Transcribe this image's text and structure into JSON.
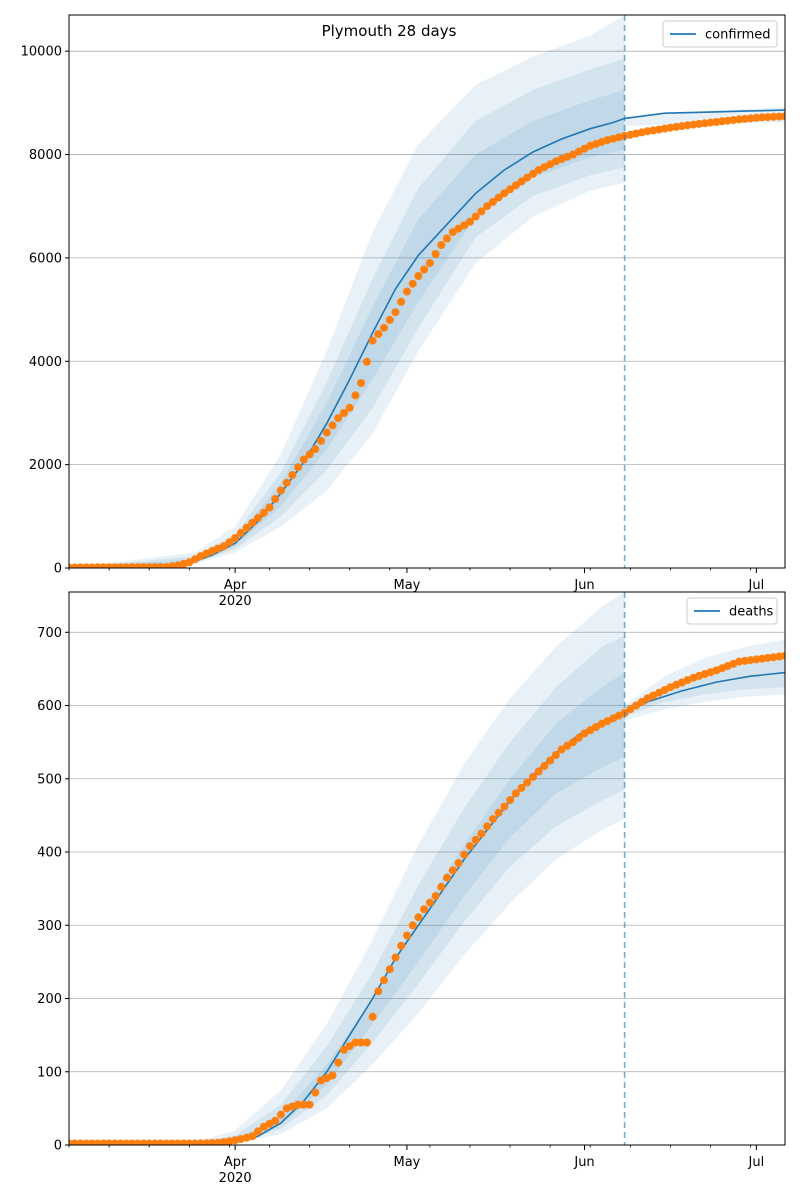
{
  "colors": {
    "model_line": "#1f77b4",
    "observed_points": "#ff7f0e",
    "band": "#1f77b4",
    "grid": "#b0b0b0"
  },
  "chart_data": [
    {
      "type": "line",
      "title": "Plymouth 28 days",
      "legend": {
        "entries": [
          "confirmed"
        ],
        "placement": "top-right"
      },
      "grid": {
        "y": true,
        "x": false
      },
      "x_axis": {
        "range": [
          "2020-03-03",
          "2020-07-06"
        ],
        "tick_labels": [
          {
            "date": "2020-04-01",
            "label": "Apr",
            "sublabel": "2020"
          },
          {
            "date": "2020-05-01",
            "label": "May",
            "sublabel": ""
          },
          {
            "date": "2020-06-01",
            "label": "Jun",
            "sublabel": ""
          },
          {
            "date": "2020-07-01",
            "label": "Jul",
            "sublabel": ""
          }
        ]
      },
      "y_axis": {
        "range": [
          0,
          10700
        ],
        "ticks": [
          0,
          2000,
          4000,
          6000,
          8000,
          10000
        ]
      },
      "forecast_start": "2020-06-08",
      "model_line": {
        "name": "confirmed",
        "dates": [
          "2020-03-03",
          "2020-03-20",
          "2020-03-25",
          "2020-03-28",
          "2020-04-01",
          "2020-04-05",
          "2020-04-09",
          "2020-04-13",
          "2020-04-17",
          "2020-04-21",
          "2020-04-25",
          "2020-04-29",
          "2020-05-03",
          "2020-05-08",
          "2020-05-13",
          "2020-05-18",
          "2020-05-23",
          "2020-05-28",
          "2020-06-02",
          "2020-06-06",
          "2020-06-08",
          "2020-06-15",
          "2020-06-22",
          "2020-06-29",
          "2020-07-06"
        ],
        "values": [
          0,
          40,
          130,
          250,
          480,
          900,
          1450,
          2050,
          2800,
          3650,
          4550,
          5400,
          6050,
          6650,
          7250,
          7700,
          8050,
          8300,
          8500,
          8620,
          8700,
          8800,
          8820,
          8840,
          8860
        ]
      },
      "bands": [
        {
          "dates": [
            "2020-03-03",
            "2020-03-25",
            "2020-04-01",
            "2020-04-09",
            "2020-04-17",
            "2020-04-25",
            "2020-05-03",
            "2020-05-13",
            "2020-05-23",
            "2020-06-02",
            "2020-06-08"
          ],
          "lower": [
            0,
            80,
            300,
            800,
            1500,
            2600,
            4200,
            5900,
            6800,
            7300,
            7450
          ],
          "upper": [
            0,
            300,
            800,
            2200,
            4200,
            6500,
            8200,
            9350,
            9900,
            10300,
            10700
          ]
        },
        {
          "dates": [
            "2020-03-03",
            "2020-03-25",
            "2020-04-01",
            "2020-04-09",
            "2020-04-17",
            "2020-04-25",
            "2020-05-03",
            "2020-05-13",
            "2020-05-23",
            "2020-06-02",
            "2020-06-08"
          ],
          "lower": [
            0,
            100,
            370,
            1000,
            1900,
            3100,
            4650,
            6400,
            7200,
            7600,
            7750
          ],
          "upper": [
            0,
            230,
            650,
            1850,
            3600,
            5600,
            7350,
            8650,
            9250,
            9650,
            9850
          ]
        },
        {
          "dates": [
            "2020-03-03",
            "2020-03-25",
            "2020-04-01",
            "2020-04-09",
            "2020-04-17",
            "2020-04-25",
            "2020-05-03",
            "2020-05-13",
            "2020-05-23",
            "2020-06-02",
            "2020-06-08"
          ],
          "lower": [
            0,
            115,
            420,
            1200,
            2300,
            3650,
            5150,
            6800,
            7550,
            7950,
            8100
          ],
          "upper": [
            0,
            175,
            560,
            1650,
            3200,
            5050,
            6750,
            8000,
            8650,
            9050,
            9250
          ]
        },
        {
          "dates": [
            "2020-06-08",
            "2020-06-15",
            "2020-06-22",
            "2020-06-29",
            "2020-07-06"
          ],
          "lower": [
            8550,
            8580,
            8600,
            8610,
            8620
          ],
          "upper": [
            8700,
            8780,
            8840,
            8880,
            8920
          ]
        }
      ],
      "observed": {
        "dates": [
          "2020-03-03",
          "2020-03-20",
          "2020-03-22",
          "2020-03-24",
          "2020-03-26",
          "2020-03-28",
          "2020-03-30",
          "2020-04-01",
          "2020-04-03",
          "2020-04-05",
          "2020-04-07",
          "2020-04-09",
          "2020-04-11",
          "2020-04-13",
          "2020-04-15",
          "2020-04-17",
          "2020-04-19",
          "2020-04-21",
          "2020-04-23",
          "2020-04-25",
          "2020-04-27",
          "2020-04-29",
          "2020-05-01",
          "2020-05-03",
          "2020-05-05",
          "2020-05-07",
          "2020-05-09",
          "2020-05-12",
          "2020-05-15",
          "2020-05-18",
          "2020-05-21",
          "2020-05-24",
          "2020-05-27",
          "2020-05-30",
          "2020-06-02",
          "2020-06-05",
          "2020-06-08",
          "2020-06-12",
          "2020-06-16",
          "2020-06-20",
          "2020-06-24",
          "2020-06-28",
          "2020-07-02",
          "2020-07-06"
        ],
        "values": [
          10,
          20,
          50,
          110,
          230,
          330,
          420,
          580,
          780,
          970,
          1170,
          1500,
          1800,
          2100,
          2300,
          2620,
          2900,
          3100,
          3580,
          4400,
          4650,
          4950,
          5350,
          5650,
          5900,
          6250,
          6500,
          6700,
          7000,
          7250,
          7480,
          7700,
          7870,
          8000,
          8170,
          8280,
          8360,
          8450,
          8520,
          8580,
          8630,
          8680,
          8720,
          8740
        ]
      }
    },
    {
      "type": "line",
      "title": "",
      "legend": {
        "entries": [
          "deaths"
        ],
        "placement": "top-right"
      },
      "grid": {
        "y": true,
        "x": false
      },
      "x_axis": {
        "range": [
          "2020-03-03",
          "2020-07-06"
        ],
        "tick_labels": [
          {
            "date": "2020-04-01",
            "label": "Apr",
            "sublabel": "2020"
          },
          {
            "date": "2020-05-01",
            "label": "May",
            "sublabel": ""
          },
          {
            "date": "2020-06-01",
            "label": "Jun",
            "sublabel": ""
          },
          {
            "date": "2020-07-01",
            "label": "Jul",
            "sublabel": ""
          }
        ]
      },
      "y_axis": {
        "range": [
          0,
          755
        ],
        "ticks": [
          0,
          100,
          200,
          300,
          400,
          500,
          600,
          700
        ]
      },
      "forecast_start": "2020-06-08",
      "model_line": {
        "name": "deaths",
        "dates": [
          "2020-03-03",
          "2020-03-25",
          "2020-03-29",
          "2020-04-01",
          "2020-04-05",
          "2020-04-09",
          "2020-04-13",
          "2020-04-17",
          "2020-04-21",
          "2020-04-25",
          "2020-04-29",
          "2020-05-03",
          "2020-05-07",
          "2020-05-11",
          "2020-05-15",
          "2020-05-19",
          "2020-05-23",
          "2020-05-27",
          "2020-05-31",
          "2020-06-04",
          "2020-06-08",
          "2020-06-12",
          "2020-06-18",
          "2020-06-24",
          "2020-06-30",
          "2020-07-06"
        ],
        "values": [
          0,
          1,
          2,
          4,
          12,
          30,
          60,
          100,
          150,
          200,
          255,
          300,
          345,
          390,
          430,
          470,
          505,
          535,
          560,
          578,
          590,
          605,
          620,
          632,
          640,
          645
        ]
      },
      "bands": [
        {
          "dates": [
            "2020-03-03",
            "2020-03-25",
            "2020-04-01",
            "2020-04-09",
            "2020-04-17",
            "2020-04-25",
            "2020-05-03",
            "2020-05-11",
            "2020-05-19",
            "2020-05-27",
            "2020-06-04",
            "2020-06-08"
          ],
          "lower": [
            0,
            0,
            2,
            15,
            50,
            110,
            180,
            260,
            330,
            390,
            430,
            445
          ],
          "upper": [
            0,
            4,
            20,
            75,
            165,
            280,
            410,
            520,
            610,
            680,
            735,
            755
          ]
        },
        {
          "dates": [
            "2020-03-03",
            "2020-03-25",
            "2020-04-01",
            "2020-04-09",
            "2020-04-17",
            "2020-04-25",
            "2020-05-03",
            "2020-05-11",
            "2020-05-19",
            "2020-05-27",
            "2020-06-04",
            "2020-06-08"
          ],
          "lower": [
            0,
            1,
            3,
            22,
            68,
            140,
            220,
            305,
            380,
            435,
            470,
            485
          ],
          "upper": [
            0,
            3,
            13,
            55,
            135,
            235,
            355,
            460,
            550,
            625,
            680,
            695
          ]
        },
        {
          "dates": [
            "2020-03-03",
            "2020-03-25",
            "2020-04-01",
            "2020-04-09",
            "2020-04-17",
            "2020-04-25",
            "2020-05-03",
            "2020-05-11",
            "2020-05-19",
            "2020-05-27",
            "2020-06-04",
            "2020-06-08"
          ],
          "lower": [
            0,
            1,
            4,
            27,
            82,
            165,
            250,
            340,
            420,
            480,
            515,
            530
          ],
          "upper": [
            0,
            2,
            8,
            40,
            110,
            200,
            310,
            410,
            500,
            575,
            625,
            645
          ]
        },
        {
          "dates": [
            "2020-06-08",
            "2020-06-15",
            "2020-06-22",
            "2020-06-29",
            "2020-07-06"
          ],
          "lower": [
            580,
            595,
            605,
            612,
            615
          ],
          "upper": [
            600,
            640,
            665,
            680,
            690
          ]
        },
        {
          "dates": [
            "2020-06-08",
            "2020-06-15",
            "2020-06-22",
            "2020-06-29",
            "2020-07-06"
          ],
          "lower": [
            585,
            605,
            615,
            622,
            625
          ],
          "upper": [
            598,
            625,
            645,
            658,
            668
          ]
        }
      ],
      "observed": {
        "dates": [
          "2020-03-03",
          "2020-03-25",
          "2020-03-29",
          "2020-03-31",
          "2020-04-02",
          "2020-04-04",
          "2020-04-06",
          "2020-04-08",
          "2020-04-10",
          "2020-04-12",
          "2020-04-14",
          "2020-04-16",
          "2020-04-18",
          "2020-04-20",
          "2020-04-22",
          "2020-04-24",
          "2020-04-26",
          "2020-04-28",
          "2020-04-30",
          "2020-05-02",
          "2020-05-04",
          "2020-05-06",
          "2020-05-08",
          "2020-05-10",
          "2020-05-12",
          "2020-05-14",
          "2020-05-16",
          "2020-05-18",
          "2020-05-20",
          "2020-05-22",
          "2020-05-24",
          "2020-05-26",
          "2020-05-28",
          "2020-05-30",
          "2020-06-01",
          "2020-06-04",
          "2020-06-08",
          "2020-06-12",
          "2020-06-16",
          "2020-06-20",
          "2020-06-24",
          "2020-06-28",
          "2020-07-02",
          "2020-07-06"
        ],
        "values": [
          2,
          2,
          3,
          5,
          8,
          12,
          25,
          33,
          50,
          55,
          55,
          88,
          95,
          130,
          140,
          140,
          210,
          240,
          272,
          300,
          322,
          340,
          365,
          385,
          408,
          425,
          445,
          462,
          480,
          495,
          510,
          525,
          540,
          550,
          562,
          575,
          590,
          610,
          625,
          638,
          648,
          660,
          664,
          668
        ]
      }
    }
  ]
}
